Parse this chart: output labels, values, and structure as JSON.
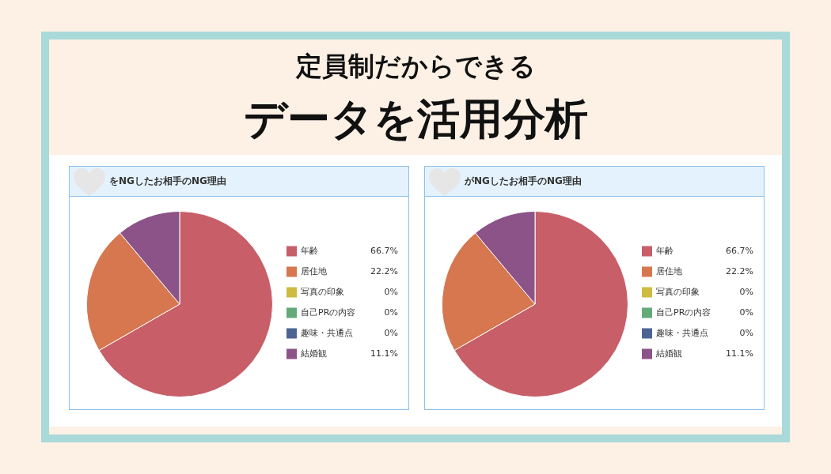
{
  "chart_data": [
    {
      "type": "other",
      "subtitle": "定員制だからできる",
      "title": "データを活用分析"
    },
    {
      "type": "pie",
      "title": "をNGしたお相手のNG理由",
      "categories": [
        "年齢",
        "居住地",
        "写真の印象",
        "自己PRの内容",
        "趣味・共通点",
        "結婚観"
      ],
      "values": [
        66.7,
        22.2,
        0,
        0,
        0,
        11.1
      ],
      "colors": [
        "#c75e68",
        "#d6774f",
        "#cdbb42",
        "#63aa78",
        "#4c6493",
        "#8c5388"
      ],
      "value_labels": [
        "66.7%",
        "22.2%",
        "0%",
        "0%",
        "0%",
        "11.1%"
      ],
      "legend": "right"
    },
    {
      "type": "pie",
      "title": "がNGしたお相手のNG理由",
      "categories": [
        "年齢",
        "居住地",
        "写真の印象",
        "自己PRの内容",
        "趣味・共通点",
        "結婚観"
      ],
      "values": [
        66.7,
        22.2,
        0,
        0,
        0,
        11.1
      ],
      "colors": [
        "#c75e68",
        "#d6774f",
        "#cdbb42",
        "#63aa78",
        "#4c6493",
        "#8c5388"
      ],
      "value_labels": [
        "66.7%",
        "22.2%",
        "0%",
        "0%",
        "0%",
        "11.1%"
      ],
      "legend": "right"
    }
  ]
}
